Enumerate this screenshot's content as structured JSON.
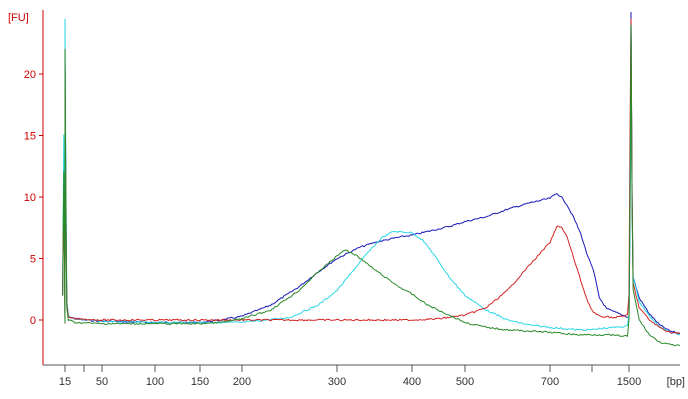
{
  "chart_data": {
    "type": "line",
    "title": "",
    "ylabel": "[FU]",
    "xlabel": "[bp]",
    "ylim": [
      -3.5,
      25
    ],
    "y_ticks": [
      0,
      5,
      10,
      15,
      20
    ],
    "x_ticks": [
      {
        "label": "15",
        "value": 15
      },
      {
        "label": "50",
        "value": 50
      },
      {
        "label": "100",
        "value": 100
      },
      {
        "label": "150",
        "value": 150
      },
      {
        "label": "200",
        "value": 200
      },
      {
        "label": "300",
        "value": 300
      },
      {
        "label": "400",
        "value": 400
      },
      {
        "label": "500",
        "value": 500
      },
      {
        "label": "700",
        "value": 700
      },
      {
        "label": "1500",
        "value": 1500
      }
    ],
    "x_minor_ticks": [
      25,
      1000
    ],
    "x_scale": "nonlinear (electropherogram)",
    "grid": false,
    "legend": "none",
    "axis_label_color": "#cc0000",
    "axis_color": "#cc0000",
    "series": [
      {
        "color": "#1a1ab8",
        "points": [
          [
            15,
            -0.2
          ],
          [
            14.6,
            2
          ],
          [
            14.8,
            12
          ],
          [
            15,
            21
          ],
          [
            15.3,
            10
          ],
          [
            15.6,
            1.5
          ],
          [
            16.2,
            0.3
          ],
          [
            20,
            0.1
          ],
          [
            25,
            0.0
          ],
          [
            50,
            -0.1
          ],
          [
            100,
            -0.2
          ],
          [
            150,
            -0.2
          ],
          [
            175,
            0.0
          ],
          [
            200,
            0.3
          ],
          [
            230,
            1.2
          ],
          [
            260,
            2.7
          ],
          [
            280,
            3.9
          ],
          [
            300,
            5.0
          ],
          [
            330,
            5.9
          ],
          [
            350,
            6.3
          ],
          [
            380,
            6.7
          ],
          [
            400,
            6.9
          ],
          [
            430,
            7.2
          ],
          [
            470,
            7.6
          ],
          [
            500,
            8.0
          ],
          [
            550,
            8.4
          ],
          [
            600,
            9.0
          ],
          [
            650,
            9.5
          ],
          [
            700,
            9.9
          ],
          [
            750,
            10.3
          ],
          [
            780,
            10.0
          ],
          [
            820,
            9.4
          ],
          [
            870,
            8.3
          ],
          [
            920,
            7.0
          ],
          [
            960,
            5.5
          ],
          [
            990,
            4.6
          ],
          [
            1020,
            4.0
          ],
          [
            1050,
            3.2
          ],
          [
            1100,
            1.8
          ],
          [
            1200,
            0.9
          ],
          [
            1500,
            0.2
          ],
          [
            1510,
            8
          ],
          [
            1520,
            25
          ],
          [
            1530,
            10
          ],
          [
            1540,
            3.5
          ],
          [
            1600,
            1.8
          ],
          [
            1700,
            0.5
          ],
          [
            1800,
            -0.4
          ],
          [
            1900,
            -0.9
          ],
          [
            2000,
            -1.1
          ]
        ]
      },
      {
        "color": "#2ad7e6",
        "points": [
          [
            15,
            -0.2
          ],
          [
            14.6,
            2
          ],
          [
            14.8,
            15
          ],
          [
            15,
            24.5
          ],
          [
            15.3,
            11
          ],
          [
            15.6,
            1.5
          ],
          [
            16.2,
            0.3
          ],
          [
            20,
            0.1
          ],
          [
            50,
            -0.1
          ],
          [
            100,
            -0.2
          ],
          [
            150,
            -0.2
          ],
          [
            200,
            -0.2
          ],
          [
            250,
            0.2
          ],
          [
            280,
            1.2
          ],
          [
            300,
            2.4
          ],
          [
            320,
            3.9
          ],
          [
            340,
            5.4
          ],
          [
            360,
            6.7
          ],
          [
            375,
            7.2
          ],
          [
            400,
            7.1
          ],
          [
            420,
            6.5
          ],
          [
            440,
            5.4
          ],
          [
            470,
            3.5
          ],
          [
            500,
            2.0
          ],
          [
            550,
            0.8
          ],
          [
            600,
            0.0
          ],
          [
            650,
            -0.4
          ],
          [
            700,
            -0.6
          ],
          [
            800,
            -0.7
          ],
          [
            900,
            -0.8
          ],
          [
            1000,
            -0.8
          ],
          [
            1100,
            -0.7
          ],
          [
            1300,
            -0.6
          ],
          [
            1480,
            -0.5
          ],
          [
            1500,
            0.5
          ],
          [
            1510,
            8
          ],
          [
            1520,
            24
          ],
          [
            1530,
            9
          ],
          [
            1540,
            3.5
          ],
          [
            1600,
            1.5
          ],
          [
            1700,
            0.3
          ],
          [
            1800,
            -0.5
          ],
          [
            1900,
            -1.0
          ],
          [
            2000,
            -1.2
          ]
        ]
      },
      {
        "color": "#d42424",
        "points": [
          [
            15,
            -0.2
          ],
          [
            14.6,
            2
          ],
          [
            14.8,
            10
          ],
          [
            15,
            21
          ],
          [
            15.3,
            8
          ],
          [
            15.6,
            1.2
          ],
          [
            16.2,
            0.2
          ],
          [
            20,
            0.1
          ],
          [
            50,
            0.0
          ],
          [
            100,
            0.0
          ],
          [
            150,
            0.0
          ],
          [
            200,
            0.0
          ],
          [
            300,
            0.0
          ],
          [
            400,
            0.0
          ],
          [
            450,
            0.1
          ],
          [
            500,
            0.4
          ],
          [
            550,
            1.0
          ],
          [
            600,
            2.4
          ],
          [
            650,
            4.4
          ],
          [
            700,
            6.3
          ],
          [
            750,
            7.6
          ],
          [
            780,
            7.6
          ],
          [
            820,
            6.8
          ],
          [
            870,
            5.0
          ],
          [
            920,
            3.2
          ],
          [
            960,
            1.8
          ],
          [
            990,
            1.0
          ],
          [
            1020,
            0.6
          ],
          [
            1100,
            0.3
          ],
          [
            1300,
            0.2
          ],
          [
            1480,
            0.4
          ],
          [
            1500,
            2
          ],
          [
            1510,
            15
          ],
          [
            1520,
            24.5
          ],
          [
            1530,
            10
          ],
          [
            1540,
            3
          ],
          [
            1600,
            1.0
          ],
          [
            1700,
            0.0
          ],
          [
            1800,
            -0.6
          ],
          [
            1900,
            -1.0
          ],
          [
            2000,
            -1.1
          ]
        ]
      },
      {
        "color": "#2a8a2a",
        "points": [
          [
            15,
            -0.2
          ],
          [
            14.6,
            2
          ],
          [
            14.8,
            12
          ],
          [
            15,
            22
          ],
          [
            15.3,
            9
          ],
          [
            15.6,
            1.0
          ],
          [
            16.2,
            0.0
          ],
          [
            20,
            -0.2
          ],
          [
            50,
            -0.3
          ],
          [
            100,
            -0.3
          ],
          [
            150,
            -0.3
          ],
          [
            175,
            -0.2
          ],
          [
            200,
            0.1
          ],
          [
            230,
            0.8
          ],
          [
            260,
            2.4
          ],
          [
            280,
            3.9
          ],
          [
            300,
            5.2
          ],
          [
            310,
            5.7
          ],
          [
            325,
            5.3
          ],
          [
            350,
            4.1
          ],
          [
            380,
            2.8
          ],
          [
            400,
            2.1
          ],
          [
            430,
            1.2
          ],
          [
            470,
            0.4
          ],
          [
            500,
            -0.2
          ],
          [
            550,
            -0.6
          ],
          [
            600,
            -0.8
          ],
          [
            700,
            -1.0
          ],
          [
            800,
            -1.1
          ],
          [
            900,
            -1.2
          ],
          [
            1000,
            -1.2
          ],
          [
            1200,
            -1.2
          ],
          [
            1400,
            -1.3
          ],
          [
            1480,
            -1.3
          ],
          [
            1500,
            0
          ],
          [
            1510,
            10
          ],
          [
            1520,
            24
          ],
          [
            1530,
            9
          ],
          [
            1540,
            2.5
          ],
          [
            1600,
            0.0
          ],
          [
            1700,
            -1.2
          ],
          [
            1800,
            -1.8
          ],
          [
            1900,
            -2.0
          ],
          [
            2000,
            -2.1
          ]
        ]
      }
    ]
  }
}
